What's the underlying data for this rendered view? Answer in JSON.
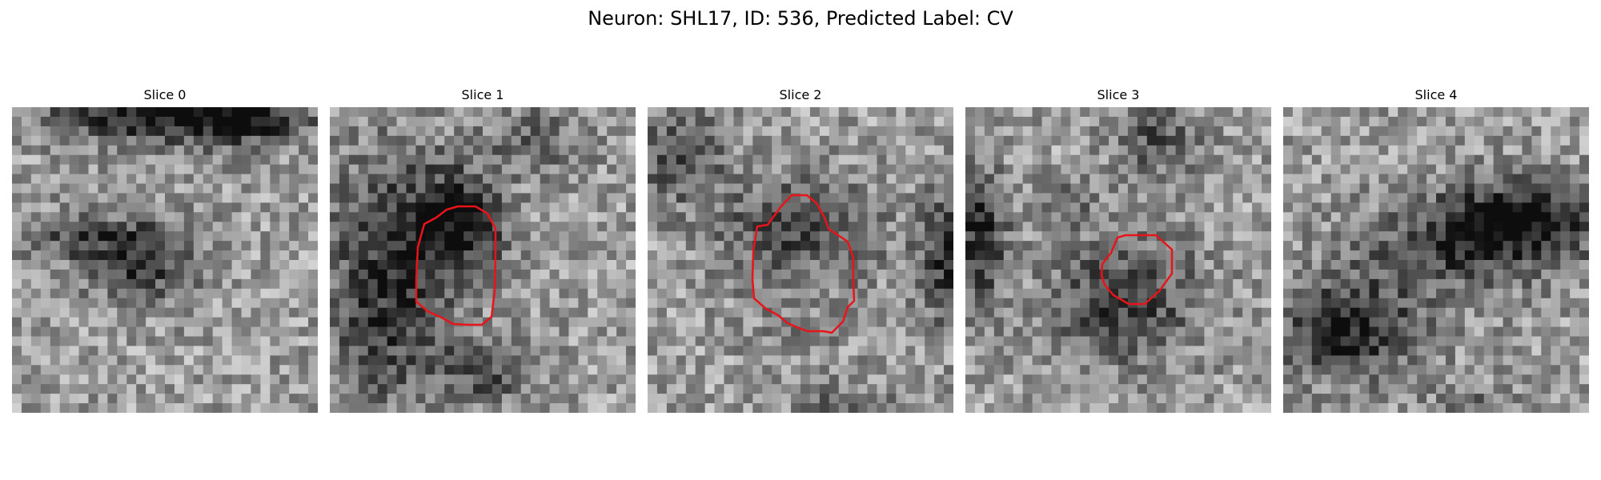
{
  "figure": {
    "title": "Neuron: SHL17, ID: 536, Predicted Label: CV"
  },
  "panels": [
    {
      "label": "Slice 0",
      "has_contour": false
    },
    {
      "label": "Slice 1",
      "has_contour": true
    },
    {
      "label": "Slice 2",
      "has_contour": true
    },
    {
      "label": "Slice 3",
      "has_contour": true
    },
    {
      "label": "Slice 4",
      "has_contour": false
    }
  ],
  "style": {
    "contour_color": "#e8141a"
  }
}
